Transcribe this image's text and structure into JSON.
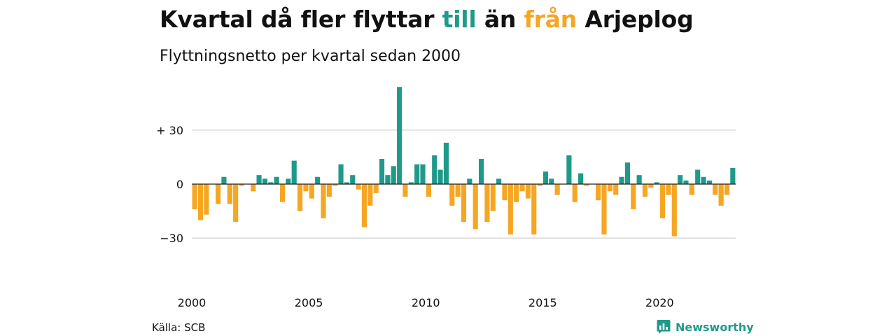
{
  "header": {
    "title_part1": "Kvartal då fler flyttar ",
    "title_till": "till",
    "title_part2": " än ",
    "title_fran": "från",
    "title_part3": " Arjeplog",
    "subtitle": "Flyttningsnetto per kvartal sedan 2000"
  },
  "footer": {
    "source": "Källa: SCB",
    "brand": "Newsworthy"
  },
  "colors": {
    "positive": "#1f9a8a",
    "negative": "#f5a623",
    "gridline": "#d9d9d9",
    "zeroline": "#222222"
  },
  "chart_data": {
    "type": "bar",
    "title": "Kvartal då fler flyttar till än från Arjeplog",
    "subtitle": "Flyttningsnetto per kvartal sedan 2000",
    "xlabel": "",
    "ylabel": "",
    "x_start_year": 2000,
    "periods_per_year": 4,
    "x_tick_labels": [
      "2000",
      "2005",
      "2010",
      "2015",
      "2020"
    ],
    "y_ticks": [
      {
        "value": 30,
        "label": "+ 30"
      },
      {
        "value": 0,
        "label": "0"
      },
      {
        "value": -30,
        "label": "−30"
      }
    ],
    "ylim": [
      -50,
      54
    ],
    "grid": true,
    "values": [
      -14,
      -20,
      -17,
      0,
      -11,
      4,
      -11,
      -21,
      -1,
      0,
      -4,
      5,
      3,
      1,
      4,
      -10,
      3,
      13,
      -15,
      -4,
      -8,
      4,
      -19,
      -7,
      -1,
      11,
      1,
      5,
      -3,
      -24,
      -12,
      -5,
      14,
      5,
      10,
      54,
      -7,
      1,
      11,
      11,
      -7,
      16,
      8,
      23,
      -12,
      -7,
      -21,
      3,
      -25,
      14,
      -21,
      -15,
      3,
      -9,
      -28,
      -10,
      -4,
      -8,
      -28,
      -1,
      7,
      3,
      -6,
      0,
      16,
      -10,
      6,
      -1,
      0,
      -9,
      -28,
      -4,
      -6,
      4,
      12,
      -14,
      5,
      -7,
      -2,
      1,
      -19,
      -6,
      -29,
      5,
      2,
      -6,
      8,
      4,
      2,
      -6,
      -12,
      -6,
      9
    ]
  }
}
